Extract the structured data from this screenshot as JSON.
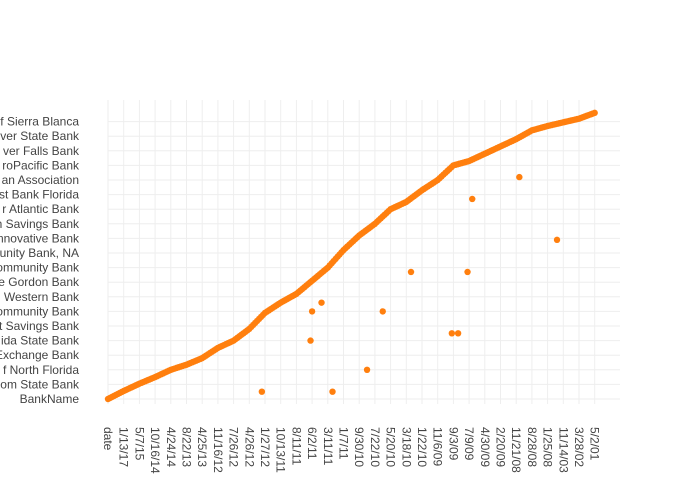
{
  "chart_data": {
    "type": "scatter",
    "title": "",
    "xlabel": "",
    "ylabel": "",
    "marker_color": "#ff7f0e",
    "grid": true,
    "legend": "none",
    "x_categories": [
      "date",
      "1/13/17",
      "5/7/15",
      "10/16/14",
      "4/24/14",
      "8/22/13",
      "4/25/13",
      "11/16/12",
      "7/26/12",
      "4/26/12",
      "1/27/12",
      "10/13/11",
      "8/11/11",
      "6/2/11",
      "3/11/11",
      "1/7/11",
      "9/30/10",
      "7/22/10",
      "5/20/10",
      "3/18/10",
      "1/22/10",
      "11/6/09",
      "9/3/09",
      "7/9/09",
      "4/30/09",
      "2/20/09",
      "11/21/08",
      "8/28/08",
      "1/25/08",
      "11/14/03",
      "3/28/02",
      "5/2/01"
    ],
    "y_categories": [
      "BankName",
      "...om State Bank",
      "...f North Florida",
      "...Exchange Bank",
      "...ida State Bank",
      "...t Savings Bank",
      "...ommunity Bank",
      "...Western Bank",
      "...e Gordon Bank",
      "...ommunity Bank",
      "...unity Bank, NA",
      "...nnovative Bank",
      "...n Savings Bank",
      "...r Atlantic Bank",
      "...st Bank Florida",
      "...an Association",
      "...roPacific Bank",
      "...lver Falls Bank",
      "...ver State Bank",
      "...f Sierra Blanca"
    ],
    "y_labels_display": [
      "BankName",
      "om State Bank",
      "f North Florida",
      "Exchange Bank",
      "ida State Bank",
      "t Savings Bank",
      "ommunity Bank",
      "Western Bank",
      "e Gordon Bank",
      "ommunity Bank",
      "unity Bank, NA",
      "nnovative Bank",
      "n Savings Bank",
      "r Atlantic Bank",
      "st Bank Florida",
      "an Association",
      "roPacific Bank",
      "ver Falls Bank",
      "ver State Bank",
      "f Sierra Blanca"
    ],
    "main_curve": {
      "x": [
        0,
        1,
        2,
        3,
        4,
        5,
        6,
        7,
        8,
        9,
        10,
        11,
        12,
        13,
        14,
        15,
        16,
        17,
        18,
        19,
        20,
        21,
        22,
        23,
        24,
        25,
        26,
        27,
        28,
        29,
        30,
        31
      ],
      "y": [
        0,
        0.55,
        1.05,
        1.5,
        2.0,
        2.35,
        2.8,
        3.5,
        4.0,
        4.8,
        5.9,
        6.6,
        7.2,
        8.1,
        9.0,
        10.2,
        11.2,
        12.0,
        13.0,
        13.5,
        14.3,
        15.0,
        16.0,
        16.3,
        16.8,
        17.3,
        17.8,
        18.4,
        18.7,
        18.95,
        19.2,
        19.6
      ]
    },
    "outliers": [
      {
        "x": 9.8,
        "y": 0.5
      },
      {
        "x": 14.3,
        "y": 0.5
      },
      {
        "x": 12.9,
        "y": 4.0
      },
      {
        "x": 13.0,
        "y": 6.0
      },
      {
        "x": 13.6,
        "y": 6.6
      },
      {
        "x": 16.5,
        "y": 2.0
      },
      {
        "x": 17.5,
        "y": 6.0
      },
      {
        "x": 19.3,
        "y": 8.7
      },
      {
        "x": 21.9,
        "y": 4.5
      },
      {
        "x": 22.3,
        "y": 4.5
      },
      {
        "x": 22.9,
        "y": 8.7
      },
      {
        "x": 23.2,
        "y": 13.7
      },
      {
        "x": 26.2,
        "y": 15.2
      },
      {
        "x": 28.6,
        "y": 10.9
      }
    ]
  }
}
